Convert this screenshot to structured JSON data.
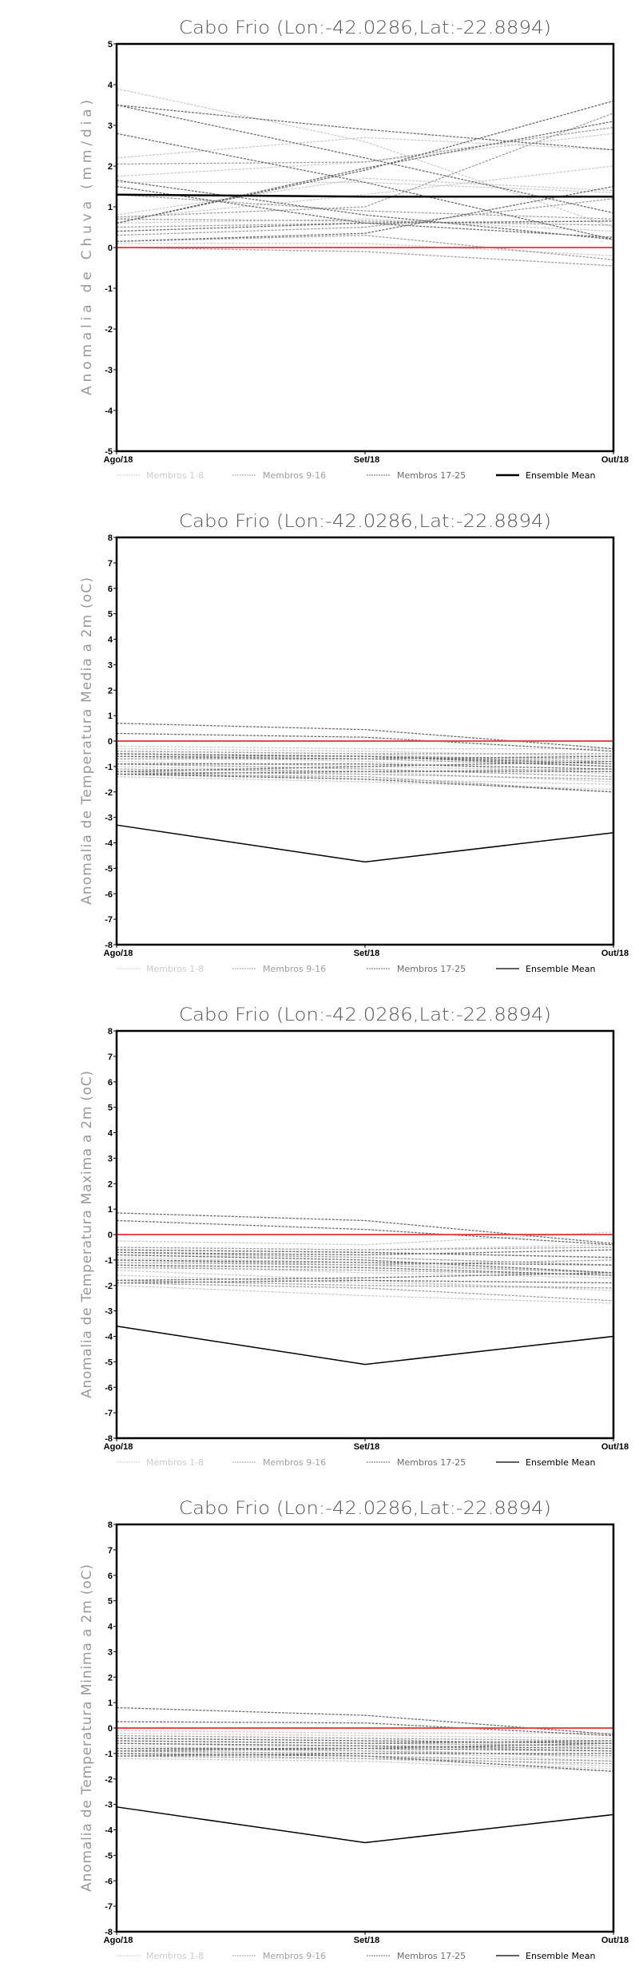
{
  "chart_data": [
    {
      "type": "line",
      "title": "Cabo Frio (Lon:-42.0286,Lat:-22.8894)",
      "ylabel": "Anomalia de Chuva (mm/dia)",
      "xlabel": "",
      "categories": [
        "Ago/18",
        "Set/18",
        "Out/18"
      ],
      "ylim": [
        -5,
        5
      ],
      "yticks": [
        "-5",
        "-4",
        "-3",
        "-2",
        "-1",
        "0",
        "1",
        "2",
        "3",
        "4",
        "5"
      ],
      "reference_line": {
        "value": 0,
        "color": "#e84a4a"
      },
      "legend": [
        {
          "label": "Membros 1-8",
          "color": "#cccccc",
          "style": "dashed"
        },
        {
          "label": "Membros 9-16",
          "color": "#a0a0a0",
          "style": "dashed"
        },
        {
          "label": "Membros 17-25",
          "color": "#6e6e6e",
          "style": "dashed"
        },
        {
          "label": "Ensemble Mean",
          "color": "#000000",
          "style": "solid"
        }
      ],
      "series": [
        {
          "name": "Membros 1-8",
          "members": [
            [
              3.9,
              2.6,
              0.5
            ],
            [
              2.2,
              2.7,
              2.4
            ],
            [
              1.75,
              2.1,
              2.8
            ],
            [
              0.7,
              1.3,
              2.0
            ],
            [
              0.1,
              0.1,
              -0.2
            ],
            [
              0.8,
              1.7,
              1.4
            ],
            [
              0.6,
              0.7,
              0.4
            ],
            [
              1.6,
              1.6,
              1.35
            ]
          ]
        },
        {
          "name": "Membros 9-16",
          "members": [
            [
              2.05,
              2.1,
              2.95
            ],
            [
              0.75,
              1.0,
              3.3
            ],
            [
              0.5,
              0.6,
              0.65
            ],
            [
              1.3,
              0.9,
              0.7
            ],
            [
              0.15,
              0.3,
              -0.3
            ],
            [
              0.3,
              0.5,
              1.2
            ],
            [
              0.0,
              -0.1,
              -0.45
            ],
            [
              0.7,
              0.65,
              0.55
            ]
          ]
        },
        {
          "name": "Membros 17-25",
          "members": [
            [
              3.5,
              2.9,
              2.4
            ],
            [
              3.5,
              2.2,
              0.85
            ],
            [
              2.8,
              1.6,
              0.2
            ],
            [
              0.6,
              1.9,
              3.6
            ],
            [
              0.6,
              1.95,
              3.1
            ],
            [
              1.65,
              0.8,
              0.2
            ],
            [
              0.15,
              0.35,
              1.5
            ],
            [
              0.4,
              0.6,
              0.65
            ],
            [
              1.5,
              0.6,
              0.25
            ]
          ]
        },
        {
          "name": "Ensemble Mean",
          "values": [
            1.3,
            1.25,
            1.25
          ]
        }
      ]
    },
    {
      "type": "line",
      "title": "Cabo Frio (Lon:-42.0286,Lat:-22.8894)",
      "ylabel": "Anomalia de Temperatura Media a 2m (oC)",
      "xlabel": "",
      "categories": [
        "Ago/18",
        "Set/18",
        "Out/18"
      ],
      "ylim": [
        -8,
        8
      ],
      "yticks": [
        "-8",
        "-7",
        "-6",
        "-5",
        "-4",
        "-3",
        "-2",
        "-1",
        "0",
        "1",
        "2",
        "3",
        "4",
        "5",
        "6",
        "7",
        "8"
      ],
      "reference_line": {
        "value": 0,
        "color": "#e84a4a"
      },
      "legend": [
        {
          "label": "Membros 1-8",
          "color": "#cccccc",
          "style": "dashed"
        },
        {
          "label": "Membros 9-16",
          "color": "#a0a0a0",
          "style": "dashed"
        },
        {
          "label": "Membros 17-25",
          "color": "#6e6e6e",
          "style": "dashed"
        },
        {
          "label": "Ensemble Mean",
          "color": "#000000",
          "style": "solid"
        }
      ],
      "series": [
        {
          "name": "Membros 1-8",
          "members": [
            [
              -0.2,
              -0.3,
              -0.3
            ],
            [
              -0.4,
              -0.5,
              -0.9
            ],
            [
              -0.6,
              -0.8,
              -1.3
            ],
            [
              -1.0,
              -1.2,
              -1.6
            ],
            [
              -1.4,
              -1.6,
              -1.9
            ],
            [
              -0.3,
              -0.4,
              -0.6
            ],
            [
              -0.8,
              -1.0,
              -1.2
            ],
            [
              -1.2,
              -1.5,
              -1.7
            ]
          ]
        },
        {
          "name": "Membros 9-16",
          "members": [
            [
              -0.5,
              -0.6,
              -0.7
            ],
            [
              -0.7,
              -0.7,
              -1.0
            ],
            [
              -0.9,
              -1.1,
              -1.4
            ],
            [
              -1.3,
              -1.4,
              -2.0
            ],
            [
              -0.4,
              -0.5,
              -0.5
            ],
            [
              -1.1,
              -1.2,
              -1.1
            ],
            [
              -0.6,
              -0.6,
              -0.8
            ],
            [
              -1.2,
              -1.3,
              -1.5
            ]
          ]
        },
        {
          "name": "Membros 17-25",
          "members": [
            [
              0.7,
              0.45,
              -0.3
            ],
            [
              0.3,
              0.15,
              -0.4
            ],
            [
              -0.5,
              -0.6,
              -0.9
            ],
            [
              -0.6,
              -0.7,
              -0.6
            ],
            [
              -0.9,
              -0.9,
              -1.1
            ],
            [
              -1.3,
              -1.2,
              -1.2
            ],
            [
              -1.2,
              -1.0,
              -0.8
            ],
            [
              -0.5,
              -0.6,
              -1.0
            ],
            [
              -1.3,
              -1.5,
              -2.0
            ]
          ]
        },
        {
          "name": "Ensemble Mean",
          "values": [
            -3.3,
            -4.75,
            -3.6
          ]
        }
      ]
    },
    {
      "type": "line",
      "title": "Cabo Frio (Lon:-42.0286,Lat:-22.8894)",
      "ylabel": "Anomalia de Temperatura Maxima a 2m (oC)",
      "xlabel": "",
      "categories": [
        "Ago/18",
        "Set/18",
        "Out/18"
      ],
      "ylim": [
        -8,
        8
      ],
      "yticks": [
        "-8",
        "-7",
        "-6",
        "-5",
        "-4",
        "-3",
        "-2",
        "-1",
        "0",
        "1",
        "2",
        "3",
        "4",
        "5",
        "6",
        "7",
        "8"
      ],
      "reference_line": {
        "value": 0,
        "color": "#e84a4a"
      },
      "legend": [
        {
          "label": "Membros 1-8",
          "color": "#cccccc",
          "style": "dashed"
        },
        {
          "label": "Membros 9-16",
          "color": "#a0a0a0",
          "style": "dashed"
        },
        {
          "label": "Membros 17-25",
          "color": "#6e6e6e",
          "style": "dashed"
        },
        {
          "label": "Ensemble Mean",
          "color": "#000000",
          "style": "solid"
        }
      ],
      "series": [
        {
          "name": "Membros 1-8",
          "members": [
            [
              -0.25,
              -0.4,
              0.1
            ],
            [
              -0.5,
              -0.6,
              -0.4
            ],
            [
              -0.9,
              -1.1,
              -1.5
            ],
            [
              -1.4,
              -1.8,
              -2.2
            ],
            [
              -2.0,
              -2.4,
              -2.7
            ],
            [
              -1.6,
              -1.9,
              -2.1
            ],
            [
              -0.8,
              -0.9,
              -1.2
            ],
            [
              -1.2,
              -1.5,
              -1.7
            ]
          ]
        },
        {
          "name": "Membros 9-16",
          "members": [
            [
              -0.6,
              -0.7,
              -0.9
            ],
            [
              -0.7,
              -0.9,
              -1.2
            ],
            [
              -1.0,
              -1.2,
              -1.5
            ],
            [
              -1.8,
              -2.0,
              -2.1
            ],
            [
              -0.5,
              -0.6,
              -0.5
            ],
            [
              -1.3,
              -1.4,
              -1.6
            ],
            [
              -1.9,
              -2.1,
              -2.6
            ],
            [
              -1.1,
              -1.2,
              -1.0
            ]
          ]
        },
        {
          "name": "Membros 17-25",
          "members": [
            [
              0.85,
              0.55,
              -0.35
            ],
            [
              0.55,
              0.2,
              -0.4
            ],
            [
              -0.6,
              -0.7,
              -0.9
            ],
            [
              -0.7,
              -0.8,
              -0.6
            ],
            [
              -1.0,
              -1.1,
              -1.2
            ],
            [
              -1.8,
              -1.7,
              -1.5
            ],
            [
              -1.9,
              -1.8,
              -1.9
            ],
            [
              -1.2,
              -1.3,
              -1.6
            ],
            [
              -0.8,
              -1.0,
              -1.5
            ]
          ]
        },
        {
          "name": "Ensemble Mean",
          "values": [
            -3.6,
            -5.1,
            -4.0
          ]
        }
      ]
    },
    {
      "type": "line",
      "title": "Cabo Frio (Lon:-42.0286,Lat:-22.8894)",
      "ylabel": "Anomalia de Temperatura Minima a 2m (oC)",
      "xlabel": "",
      "categories": [
        "Ago/18",
        "Set/18",
        "Out/18"
      ],
      "ylim": [
        -8,
        8
      ],
      "yticks": [
        "-8",
        "-7",
        "-6",
        "-5",
        "-4",
        "-3",
        "-2",
        "-1",
        "0",
        "1",
        "2",
        "3",
        "4",
        "5",
        "6",
        "7",
        "8"
      ],
      "reference_line": {
        "value": 0,
        "color": "#e84a4a"
      },
      "legend": [
        {
          "label": "Membros 1-8",
          "color": "#cccccc",
          "style": "dashed"
        },
        {
          "label": "Membros 9-16",
          "color": "#a0a0a0",
          "style": "dashed"
        },
        {
          "label": "Membros 17-25",
          "color": "#6e6e6e",
          "style": "dashed"
        },
        {
          "label": "Ensemble Mean",
          "color": "#000000",
          "style": "solid"
        }
      ],
      "series": [
        {
          "name": "Membros 1-8",
          "members": [
            [
              -0.1,
              -0.2,
              -0.2
            ],
            [
              -0.3,
              -0.4,
              -0.8
            ],
            [
              -0.6,
              -0.8,
              -1.2
            ],
            [
              -0.9,
              -1.1,
              -1.5
            ],
            [
              -1.2,
              -1.3,
              -1.7
            ],
            [
              -0.2,
              -0.3,
              -0.4
            ],
            [
              -0.7,
              -0.9,
              -1.3
            ],
            [
              -1.0,
              -1.2,
              -1.6
            ]
          ]
        },
        {
          "name": "Membros 9-16",
          "members": [
            [
              -0.3,
              -0.4,
              -0.5
            ],
            [
              -0.5,
              -0.6,
              -0.7
            ],
            [
              -0.8,
              -0.9,
              -1.1
            ],
            [
              -1.1,
              -1.2,
              -1.4
            ],
            [
              -0.4,
              -0.5,
              -0.6
            ],
            [
              -0.9,
              -1.0,
              -1.0
            ],
            [
              -0.6,
              -0.7,
              -0.9
            ],
            [
              -1.0,
              -1.1,
              -1.3
            ]
          ]
        },
        {
          "name": "Membros 17-25",
          "members": [
            [
              0.8,
              0.5,
              -0.25
            ],
            [
              0.25,
              0.2,
              -0.3
            ],
            [
              -0.4,
              -0.5,
              -0.6
            ],
            [
              -0.5,
              -0.6,
              -0.5
            ],
            [
              -0.8,
              -0.8,
              -0.9
            ],
            [
              -1.1,
              -1.0,
              -1.0
            ],
            [
              -0.9,
              -0.8,
              -0.6
            ],
            [
              -0.6,
              -0.7,
              -0.8
            ],
            [
              -1.0,
              -1.1,
              -1.7
            ]
          ]
        },
        {
          "name": "Ensemble Mean",
          "values": [
            -3.1,
            -4.5,
            -3.4
          ]
        }
      ]
    }
  ]
}
